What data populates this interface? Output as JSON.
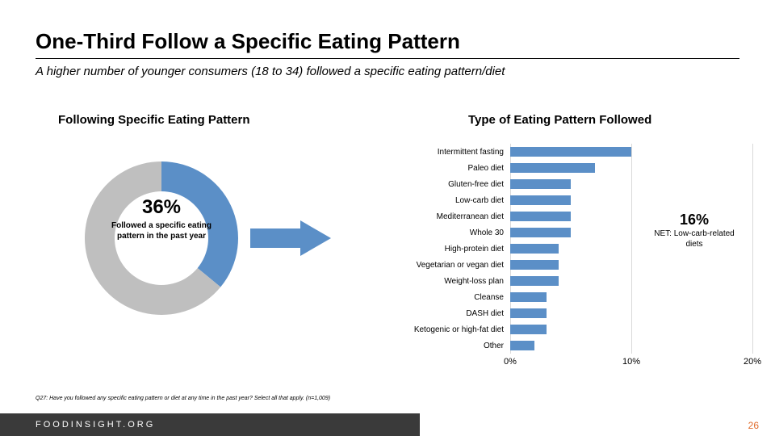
{
  "title": "One-Third Follow a Specific Eating Pattern",
  "subtitle": "A higher number of younger consumers (18 to 34) followed a specific eating pattern/diet",
  "left_chart": {
    "title": "Following Specific Eating Pattern",
    "center_pct": "36%",
    "center_label": "Followed a specific eating pattern in the past year",
    "value": 36,
    "color_fill": "#5b8fc7",
    "color_rest": "#bfbfbf",
    "inner_radius": 58,
    "outer_radius": 95
  },
  "arrow_color": "#5b8fc7",
  "right_chart": {
    "title": "Type of Eating Pattern Followed",
    "xmax": 20,
    "xticks": [
      0,
      10,
      20
    ],
    "xtick_labels": [
      "0%",
      "10%",
      "20%"
    ],
    "bar_color": "#5b8fc7",
    "grid_color": "#d9d9d9",
    "label_fontsize": 10,
    "rows": [
      {
        "label": "Intermittent fasting",
        "value": 10
      },
      {
        "label": "Paleo diet",
        "value": 7
      },
      {
        "label": "Gluten-free diet",
        "value": 5
      },
      {
        "label": "Low-carb diet",
        "value": 5
      },
      {
        "label": "Mediterranean diet",
        "value": 5
      },
      {
        "label": "Whole 30",
        "value": 5
      },
      {
        "label": "High-protein diet",
        "value": 4
      },
      {
        "label": "Vegetarian or vegan diet",
        "value": 4
      },
      {
        "label": "Weight-loss plan",
        "value": 4
      },
      {
        "label": "Cleanse",
        "value": 3
      },
      {
        "label": "DASH diet",
        "value": 3
      },
      {
        "label": "Ketogenic or high-fat diet",
        "value": 3
      },
      {
        "label": "Other",
        "value": 2
      }
    ]
  },
  "callout": {
    "pct": "16%",
    "text": "NET: Low-carb-related diets"
  },
  "footnote": "Q27: Have you followed any specific eating pattern or diet at any time in the past year? Select all that apply. (n=1,009)",
  "footer_brand": "FOODINSIGHT.ORG",
  "page_number": "26",
  "colors": {
    "footer_bg": "#3a3a3a",
    "page_num": "#e06b2c"
  }
}
